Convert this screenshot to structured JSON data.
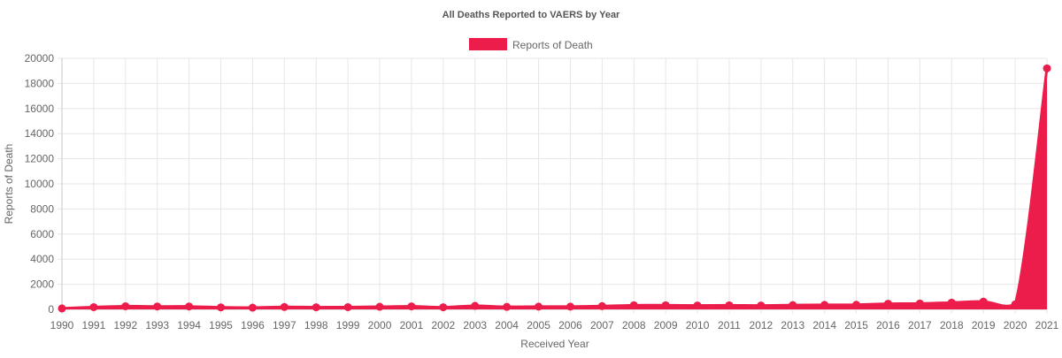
{
  "chart_data": {
    "type": "area",
    "title": "All Deaths Reported to VAERS by Year",
    "xlabel": "Received Year",
    "ylabel": "Reports of Death",
    "legend": {
      "position": "top-center",
      "entries": [
        "Reports of Death"
      ]
    },
    "grid": true,
    "ylim": [
      0,
      20000
    ],
    "yticks": [
      0,
      2000,
      4000,
      6000,
      8000,
      10000,
      12000,
      14000,
      16000,
      18000,
      20000
    ],
    "categories": [
      "1990",
      "1991",
      "1992",
      "1993",
      "1994",
      "1995",
      "1996",
      "1997",
      "1998",
      "1999",
      "2000",
      "2001",
      "2002",
      "2003",
      "2004",
      "2005",
      "2006",
      "2007",
      "2008",
      "2009",
      "2010",
      "2011",
      "2012",
      "2013",
      "2014",
      "2015",
      "2016",
      "2017",
      "2018",
      "2019",
      "2020",
      "2021"
    ],
    "series": [
      {
        "name": "Reports of Death",
        "color": "#ec1c4b",
        "values": [
          75,
          180,
          250,
          230,
          230,
          160,
          140,
          190,
          170,
          180,
          210,
          240,
          170,
          280,
          200,
          220,
          220,
          260,
          330,
          330,
          310,
          330,
          310,
          340,
          360,
          370,
          450,
          470,
          540,
          620,
          400,
          19200
        ]
      }
    ]
  }
}
